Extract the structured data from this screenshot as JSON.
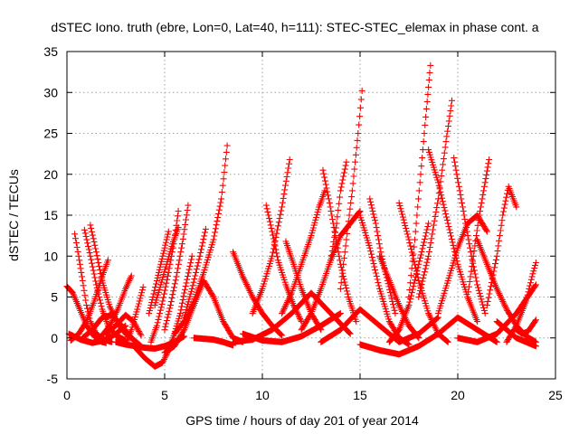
{
  "chart_data": {
    "type": "scatter",
    "title": "dSTEC Iono. truth (ebre, Lon=0, Lat=40, h=111): STEC-STEC_elemax in phase cont. a",
    "xlabel": "GPS time / hours of day 201 of year 2014",
    "ylabel": "dSTEC  / TECUs",
    "xlim": [
      0,
      25
    ],
    "ylim": [
      -5,
      35
    ],
    "xticks": [
      0,
      5,
      10,
      15,
      20,
      25
    ],
    "yticks": [
      -5,
      0,
      5,
      10,
      15,
      20,
      25,
      30,
      35
    ],
    "grid": true,
    "marker": "plus",
    "color": "#ff0000",
    "series": [
      {
        "x": [
          0.0,
          0.3,
          0.6,
          1.0,
          1.4,
          1.8,
          2.0
        ],
        "y": [
          6.3,
          5.5,
          3.8,
          1.5,
          0.2,
          -0.5,
          -0.6
        ]
      },
      {
        "x": [
          0.4,
          0.6,
          0.8,
          1.0,
          1.2,
          1.5,
          1.9,
          2.3
        ],
        "y": [
          12.7,
          10.0,
          7.0,
          4.0,
          2.0,
          0.5,
          -0.2,
          -0.5
        ]
      },
      {
        "x": [
          0.9,
          1.2,
          1.5,
          1.8,
          2.1,
          2.5,
          3.0
        ],
        "y": [
          13.2,
          10.0,
          6.5,
          3.5,
          1.5,
          0.3,
          -0.3
        ]
      },
      {
        "x": [
          1.2,
          1.5,
          1.8,
          2.2,
          2.6,
          3.0,
          3.4
        ],
        "y": [
          13.8,
          10.5,
          7.0,
          3.8,
          1.8,
          0.5,
          -0.2
        ]
      },
      {
        "x": [
          0.2,
          0.6,
          1.0,
          1.4,
          1.8,
          2.1
        ],
        "y": [
          -0.3,
          0.5,
          2.0,
          4.5,
          7.5,
          9.5
        ]
      },
      {
        "x": [
          0.1,
          0.7,
          1.3,
          1.9,
          2.5,
          3.0
        ],
        "y": [
          0.5,
          -0.2,
          -0.6,
          -0.3,
          0.5,
          1.5
        ]
      },
      {
        "x": [
          1.8,
          2.2,
          2.6,
          3.0,
          3.3
        ],
        "y": [
          0.3,
          1.5,
          3.5,
          6.0,
          7.6
        ]
      },
      {
        "x": [
          2.0,
          2.5,
          3.0,
          3.4,
          3.8
        ],
        "y": [
          0.5,
          1.5,
          2.8,
          2.0,
          0.3
        ]
      },
      {
        "x": [
          3.0,
          3.3,
          3.6,
          3.9
        ],
        "y": [
          -0.8,
          1.0,
          3.5,
          6.2
        ]
      },
      {
        "x": [
          0.8,
          1.3,
          1.8,
          2.3,
          2.8,
          3.3,
          3.8
        ],
        "y": [
          0.0,
          1.0,
          2.5,
          2.8,
          1.5,
          0.0,
          -1.0
        ]
      },
      {
        "x": [
          2.5,
          3.0,
          3.5,
          4.0,
          4.5,
          5.0,
          5.5,
          6.0
        ],
        "y": [
          -0.5,
          -0.8,
          -1.0,
          -1.2,
          -1.3,
          -1.0,
          -0.5,
          0.2
        ]
      },
      {
        "x": [
          3.5,
          4.0,
          4.5,
          4.9,
          5.2,
          5.5,
          5.8,
          6.0,
          6.4
        ],
        "y": [
          -1.2,
          -2.5,
          -3.5,
          -3.0,
          -1.5,
          0.5,
          3.0,
          5.5,
          10.0
        ]
      },
      {
        "x": [
          4.2,
          4.4,
          4.6,
          4.8,
          5.0,
          5.2
        ],
        "y": [
          3.0,
          5.0,
          7.0,
          9.0,
          11.0,
          13.0
        ]
      },
      {
        "x": [
          4.5,
          4.8,
          5.1,
          5.4,
          5.7
        ],
        "y": [
          4.0,
          6.5,
          9.0,
          11.5,
          13.5
        ]
      },
      {
        "x": [
          4.3,
          4.6,
          4.9,
          5.2,
          5.5,
          5.7
        ],
        "y": [
          -0.5,
          1.5,
          4.5,
          8.0,
          12.0,
          15.5
        ]
      },
      {
        "x": [
          5.0,
          5.3,
          5.6,
          5.9,
          6.2
        ],
        "y": [
          1.0,
          4.0,
          7.5,
          11.5,
          16.2
        ]
      },
      {
        "x": [
          5.5,
          6.0,
          6.5,
          7.0,
          7.5,
          7.9,
          8.2
        ],
        "y": [
          0.5,
          2.0,
          4.5,
          8.0,
          12.0,
          17.0,
          23.5
        ]
      },
      {
        "x": [
          6.0,
          6.4,
          6.8,
          7.1
        ],
        "y": [
          2.5,
          6.0,
          10.0,
          13.3
        ]
      },
      {
        "x": [
          5.0,
          5.5,
          6.0,
          6.5,
          7.0,
          7.5,
          8.0,
          8.5,
          9.0
        ],
        "y": [
          -1.8,
          -1.0,
          1.0,
          4.0,
          7.0,
          5.0,
          2.0,
          0.0,
          -0.5
        ]
      },
      {
        "x": [
          6.5,
          7.0,
          7.5,
          8.0,
          8.5
        ],
        "y": [
          0.0,
          -0.1,
          -0.2,
          -0.5,
          -0.9
        ]
      },
      {
        "x": [
          8.5,
          9.0,
          9.5,
          10.0,
          10.5,
          11.0
        ],
        "y": [
          10.5,
          7.5,
          5.0,
          3.0,
          1.5,
          0.3
        ]
      },
      {
        "x": [
          10.2,
          10.5,
          10.8,
          11.2,
          11.6,
          12.0
        ],
        "y": [
          16.2,
          13.0,
          9.5,
          6.5,
          4.0,
          2.0
        ]
      },
      {
        "x": [
          9.5,
          10.0,
          10.5,
          11.0,
          11.4
        ],
        "y": [
          3.0,
          6.0,
          10.0,
          16.0,
          21.8
        ]
      },
      {
        "x": [
          8.5,
          9.5,
          10.5,
          11.5,
          12.5,
          13.5,
          14.5
        ],
        "y": [
          -0.5,
          -0.2,
          1.0,
          3.0,
          5.5,
          3.0,
          0.5
        ]
      },
      {
        "x": [
          11.2,
          11.6,
          12.0,
          12.5,
          13.0
        ],
        "y": [
          11.8,
          9.0,
          6.0,
          3.0,
          1.0
        ]
      },
      {
        "x": [
          11.0,
          11.5,
          12.0,
          12.5,
          12.9,
          13.2
        ],
        "y": [
          3.0,
          5.5,
          9.0,
          12.5,
          16.0,
          18.0
        ]
      },
      {
        "x": [
          13.1,
          13.4,
          13.7,
          14.0,
          14.4,
          14.8
        ],
        "y": [
          20.5,
          17.0,
          13.0,
          9.0,
          5.0,
          2.0
        ]
      },
      {
        "x": [
          12.0,
          12.5,
          13.0,
          13.5,
          14.0,
          14.5,
          15.0
        ],
        "y": [
          1.0,
          3.0,
          6.0,
          9.5,
          12.5,
          14.0,
          15.5
        ]
      },
      {
        "x": [
          14.0,
          14.3,
          14.6,
          14.9,
          15.1
        ],
        "y": [
          6.0,
          12.0,
          18.0,
          25.0,
          30.2
        ]
      },
      {
        "x": [
          13.5,
          13.8,
          14.0,
          14.3
        ],
        "y": [
          9.5,
          14.0,
          18.0,
          21.5
        ]
      },
      {
        "x": [
          15.0,
          15.5,
          16.0,
          16.5,
          17.0,
          17.5
        ],
        "y": [
          15.0,
          11.0,
          6.0,
          2.0,
          0.0,
          -0.8
        ]
      },
      {
        "x": [
          15.5,
          15.8,
          16.1,
          16.4,
          16.8
        ],
        "y": [
          17.0,
          14.0,
          10.0,
          7.0,
          3.0
        ]
      },
      {
        "x": [
          13.0,
          14.0,
          15.0,
          16.0,
          17.0,
          18.0,
          19.0
        ],
        "y": [
          -0.5,
          1.0,
          3.5,
          1.5,
          -0.5,
          0.5,
          2.5
        ]
      },
      {
        "x": [
          16.0,
          16.5,
          17.0,
          17.5,
          18.0
        ],
        "y": [
          10.0,
          7.0,
          4.0,
          1.5,
          0.0
        ]
      },
      {
        "x": [
          16.5,
          17.0,
          17.5,
          18.0,
          18.5
        ],
        "y": [
          -0.5,
          1.0,
          4.0,
          9.0,
          14.0
        ]
      },
      {
        "x": [
          17.5,
          17.8,
          18.1,
          18.4,
          18.6
        ],
        "y": [
          5.0,
          12.0,
          20.0,
          28.0,
          33.3
        ]
      },
      {
        "x": [
          17.0,
          17.5,
          18.0,
          18.5,
          19.0,
          19.5
        ],
        "y": [
          16.5,
          12.0,
          7.0,
          3.0,
          0.5,
          -0.5
        ]
      },
      {
        "x": [
          18.5,
          19.0,
          19.5,
          20.0,
          20.5,
          21.0
        ],
        "y": [
          23.0,
          19.0,
          14.0,
          9.0,
          5.0,
          2.0
        ]
      },
      {
        "x": [
          18.0,
          18.5,
          19.0,
          19.4,
          19.7
        ],
        "y": [
          5.0,
          10.0,
          17.0,
          24.0,
          29.0
        ]
      },
      {
        "x": [
          19.8,
          20.1,
          20.4,
          20.7,
          21.0,
          21.4
        ],
        "y": [
          22.0,
          18.0,
          14.0,
          10.0,
          6.5,
          3.0
        ]
      },
      {
        "x": [
          19.0,
          19.5,
          20.0,
          20.5,
          21.0,
          21.5
        ],
        "y": [
          3.0,
          7.0,
          11.0,
          14.0,
          15.0,
          13.0
        ]
      },
      {
        "x": [
          20.5,
          20.8,
          21.1,
          21.4,
          21.6
        ],
        "y": [
          5.0,
          10.0,
          15.0,
          19.0,
          21.8
        ]
      },
      {
        "x": [
          21.0,
          21.5,
          22.0,
          22.5,
          23.0,
          23.5,
          24.0
        ],
        "y": [
          12.0,
          9.0,
          6.0,
          3.5,
          1.5,
          0.2,
          -0.5
        ]
      },
      {
        "x": [
          21.5,
          22.0,
          22.3,
          22.6,
          23.0
        ],
        "y": [
          4.0,
          10.0,
          15.0,
          18.5,
          16.0
        ]
      },
      {
        "x": [
          20.0,
          21.0,
          22.0,
          23.0,
          24.0
        ],
        "y": [
          0.0,
          -0.5,
          0.5,
          3.0,
          6.5
        ]
      },
      {
        "x": [
          22.0,
          22.5,
          23.0,
          23.5,
          24.0
        ],
        "y": [
          2.0,
          1.0,
          0.0,
          -0.5,
          -1.0
        ]
      },
      {
        "x": [
          22.5,
          23.0,
          23.5,
          23.8,
          24.0
        ],
        "y": [
          -0.5,
          1.5,
          4.5,
          7.5,
          9.2
        ]
      },
      {
        "x": [
          23.0,
          23.3,
          23.6,
          24.0
        ],
        "y": [
          1.0,
          0.5,
          0.8,
          2.2
        ]
      },
      {
        "x": [
          15.0,
          16.0,
          17.0,
          18.0,
          19.0,
          20.0,
          21.0,
          22.0
        ],
        "y": [
          -0.8,
          -1.5,
          -2.0,
          -1.0,
          0.5,
          2.5,
          1.0,
          -0.5
        ]
      },
      {
        "x": [
          9.0,
          10.0,
          11.0,
          12.0,
          13.0,
          14.0
        ],
        "y": [
          0.5,
          -0.3,
          -0.5,
          0.2,
          1.5,
          3.0
        ]
      }
    ]
  }
}
